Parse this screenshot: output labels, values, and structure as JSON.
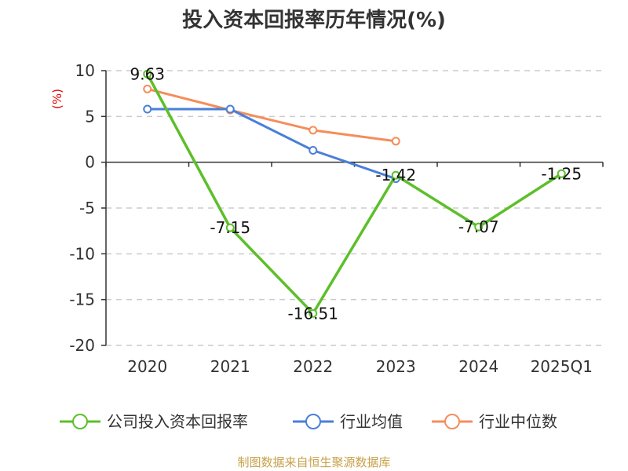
{
  "colors": {
    "company": "#5dbf2a",
    "industry_avg": "#4a7fd9",
    "industry_median": "#f58d5a",
    "grid": "#cccccc",
    "axis": "#333333",
    "unit": "#e00000",
    "source": "#c8a04a"
  },
  "chart_data": {
    "type": "line",
    "title": "投入资本回报率历年情况(%)",
    "unit_label": "(%)",
    "categories": [
      "2020",
      "2021",
      "2022",
      "2023",
      "2024",
      "2025Q1"
    ],
    "ylim": [
      -20,
      10
    ],
    "yticks": [
      10,
      5,
      0,
      -5,
      -10,
      -15,
      -20
    ],
    "ytick_labels": [
      "10",
      "5",
      "0",
      "-5",
      "-10",
      "-15",
      "-20"
    ],
    "grid": true,
    "legend_position": "bottom",
    "series": [
      {
        "name": "公司投入资本回报率",
        "color_key": "company",
        "values": [
          9.63,
          -7.15,
          -16.51,
          -1.42,
          -7.07,
          -1.25
        ],
        "labels": [
          "9.63",
          "-7.15",
          "-16.51",
          "-1.42",
          "-7.07",
          "-1.25"
        ]
      },
      {
        "name": "行业均值",
        "color_key": "industry_avg",
        "values": [
          5.8,
          5.8,
          1.3,
          -1.8,
          null,
          null
        ]
      },
      {
        "name": "行业中位数",
        "color_key": "industry_median",
        "values": [
          8.0,
          5.7,
          3.5,
          2.3,
          null,
          null
        ]
      }
    ]
  },
  "source": "制图数据来自恒生聚源数据库"
}
